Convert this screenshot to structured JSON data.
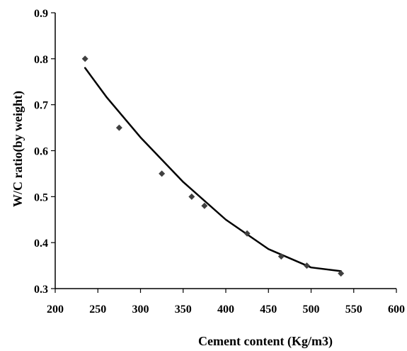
{
  "chart_data": {
    "type": "scatter",
    "title": "",
    "xlabel": "Cement content (Kg/m3)",
    "ylabel": "W/C ratio(by weight)",
    "xlim": [
      200,
      600
    ],
    "ylim": [
      0.3,
      0.9
    ],
    "xticks": [
      "200",
      "250",
      "300",
      "350",
      "400",
      "450",
      "500",
      "550",
      "600"
    ],
    "yticks": [
      "0.3",
      "0.4",
      "0.5",
      "0.6",
      "0.7",
      "0.8",
      "0.9"
    ],
    "grid": false,
    "legend": false,
    "series": [
      {
        "marker": "diamond",
        "color": "#404040",
        "points": [
          {
            "x": 235,
            "y": 0.8
          },
          {
            "x": 275,
            "y": 0.65
          },
          {
            "x": 325,
            "y": 0.55
          },
          {
            "x": 360,
            "y": 0.5
          },
          {
            "x": 375,
            "y": 0.48
          },
          {
            "x": 425,
            "y": 0.42
          },
          {
            "x": 465,
            "y": 0.37
          },
          {
            "x": 495,
            "y": 0.35
          },
          {
            "x": 535,
            "y": 0.333
          }
        ]
      }
    ],
    "trendline": {
      "type": "polynomial",
      "color": "#000000",
      "x_range": [
        235,
        535
      ],
      "points": [
        {
          "x": 235,
          "y": 0.78
        },
        {
          "x": 260,
          "y": 0.717
        },
        {
          "x": 300,
          "y": 0.629
        },
        {
          "x": 350,
          "y": 0.532
        },
        {
          "x": 400,
          "y": 0.45
        },
        {
          "x": 450,
          "y": 0.386
        },
        {
          "x": 500,
          "y": 0.346
        },
        {
          "x": 535,
          "y": 0.338
        }
      ]
    }
  }
}
